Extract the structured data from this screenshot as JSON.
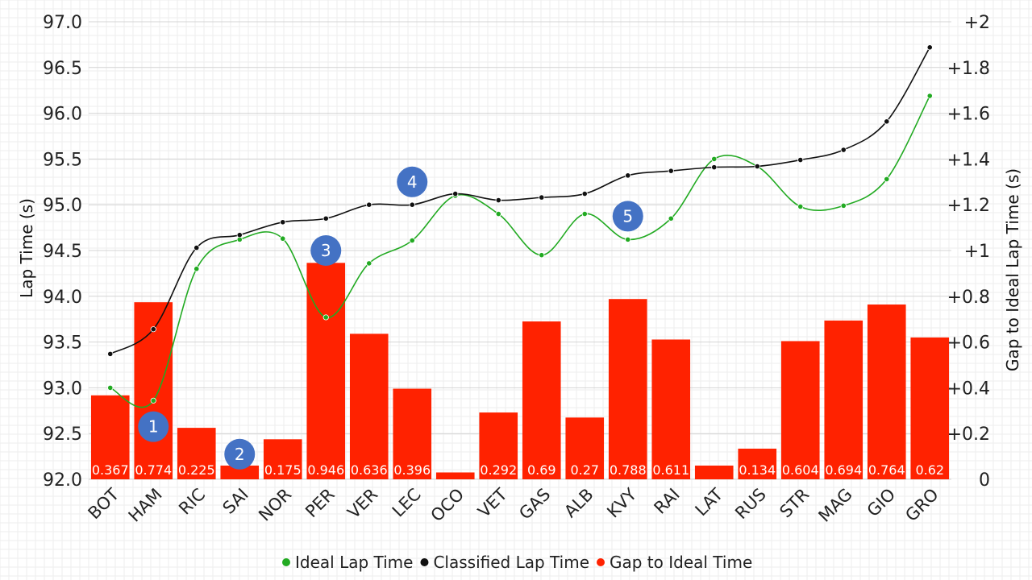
{
  "chart_data": {
    "type": "bar+line",
    "categories": [
      "BOT",
      "HAM",
      "RIC",
      "SAI",
      "NOR",
      "PER",
      "VER",
      "LEC",
      "OCO",
      "VET",
      "GAS",
      "ALB",
      "KVY",
      "RAI",
      "LAT",
      "RUS",
      "STR",
      "MAG",
      "GIO",
      "GRO"
    ],
    "left_axis": {
      "label": "Lap Time (s)",
      "range": [
        92.0,
        97.0
      ],
      "ticks": [
        "92.0",
        "92.5",
        "93.0",
        "93.5",
        "94.0",
        "94.5",
        "95.0",
        "95.5",
        "96.0",
        "96.5",
        "97.0"
      ]
    },
    "right_axis": {
      "label": "Gap to Ideal Lap Time (s)",
      "range": [
        0,
        2
      ],
      "ticks": [
        "0",
        "+0.2",
        "+0.4",
        "+0.6",
        "+0.8",
        "+1",
        "+1.2",
        "+1.4",
        "+1.6",
        "+1.8",
        "+2"
      ]
    },
    "series": [
      {
        "name": "Ideal Lap Time",
        "type": "line",
        "axis": "left",
        "color": "#22aa22",
        "values": [
          93.0,
          92.86,
          94.3,
          94.62,
          94.63,
          93.77,
          94.36,
          94.61,
          95.1,
          94.9,
          94.45,
          94.9,
          94.62,
          94.85,
          95.5,
          95.42,
          94.98,
          94.99,
          95.28,
          96.19
        ]
      },
      {
        "name": "Classified Lap Time",
        "type": "line",
        "axis": "left",
        "color": "#111111",
        "values": [
          93.37,
          93.64,
          94.53,
          94.67,
          94.81,
          94.85,
          95.0,
          95.0,
          95.12,
          95.05,
          95.08,
          95.12,
          95.32,
          95.37,
          95.41,
          95.42,
          95.49,
          95.6,
          95.91,
          96.72
        ]
      },
      {
        "name": "Gap to Ideal Time",
        "type": "bar",
        "axis": "right",
        "color": "#ff2200",
        "values": [
          0.367,
          0.774,
          0.225,
          0.06,
          0.175,
          0.946,
          0.636,
          0.396,
          0.03,
          0.292,
          0.69,
          0.27,
          0.788,
          0.611,
          0.06,
          0.134,
          0.604,
          0.694,
          0.764,
          0.62
        ],
        "labels": [
          "0.367",
          "0.774",
          "0.225",
          "",
          "0.175",
          "0.946",
          "0.636",
          "0.396",
          "",
          "0.292",
          "0.69",
          "0.27",
          "0.788",
          "0.611",
          "",
          "0.134",
          "0.604",
          "0.694",
          "0.764",
          "0.62"
        ]
      }
    ],
    "annotations": [
      {
        "text": "1",
        "category": "HAM",
        "gap": 0.23
      },
      {
        "text": "2",
        "category": "SAI",
        "gap": 0.11
      },
      {
        "text": "3",
        "category": "PER",
        "gap": 1.0
      },
      {
        "text": "4",
        "category": "LEC",
        "gap": 1.3
      },
      {
        "text": "5",
        "category": "KVY",
        "gap": 1.15
      }
    ],
    "annotation_color": "#4472c4",
    "grid": true,
    "legend": "bottom"
  }
}
